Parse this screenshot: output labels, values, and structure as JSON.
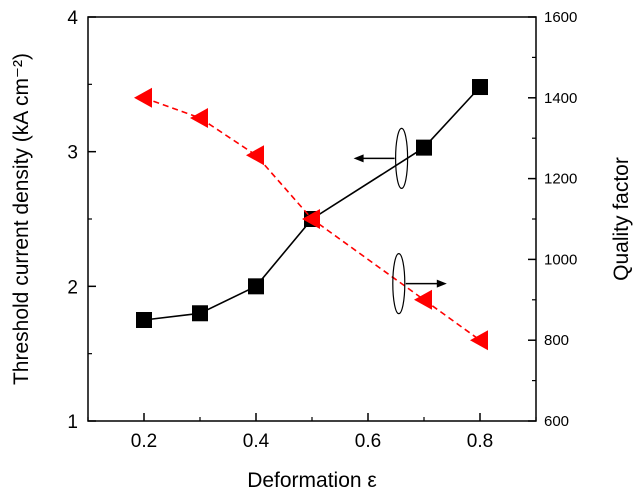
{
  "chart_data": {
    "type": "line",
    "title": "",
    "xlabel": "Deformation ε",
    "ylabel_left": "Threshold current density (kA cm⁻²)",
    "ylabel_right": "Quality factor",
    "xlim": [
      0.1,
      0.9
    ],
    "ylim_left": [
      1,
      4
    ],
    "ylim_right": [
      600,
      1600
    ],
    "x_ticks": [
      0.2,
      0.4,
      0.6,
      0.8
    ],
    "x_tick_labels": [
      "0.2",
      "0.4",
      "0.6",
      "0.8"
    ],
    "y_left_ticks": [
      1,
      2,
      3,
      4
    ],
    "y_left_tick_labels": [
      "1",
      "2",
      "3",
      "4"
    ],
    "y_right_ticks": [
      600,
      800,
      1000,
      1200,
      1400,
      1600
    ],
    "y_right_tick_labels": [
      "600",
      "800",
      "1000",
      "1200",
      "1400",
      "1600"
    ],
    "grid": false,
    "legend": "none",
    "series": [
      {
        "axis": "left",
        "marker": "square",
        "line": "solid",
        "color": "#000000",
        "x": [
          0.2,
          0.3,
          0.4,
          0.5,
          0.7,
          0.8
        ],
        "values": [
          1.75,
          1.8,
          2.0,
          2.5,
          3.03,
          3.48
        ]
      },
      {
        "axis": "right",
        "marker": "triangle-left",
        "line": "dashed",
        "color": "#ff0000",
        "x": [
          0.2,
          0.3,
          0.4,
          0.5,
          0.7,
          0.8
        ],
        "values": [
          1400,
          1350,
          1258,
          1100,
          900,
          800
        ]
      }
    ],
    "annotations": [
      {
        "series": 0,
        "points_to": "left-axis",
        "x": 0.66,
        "y_axis": "left",
        "y": 2.95
      },
      {
        "series": 1,
        "points_to": "right-axis",
        "x": 0.655,
        "y_axis": "right",
        "y": 940
      }
    ]
  }
}
